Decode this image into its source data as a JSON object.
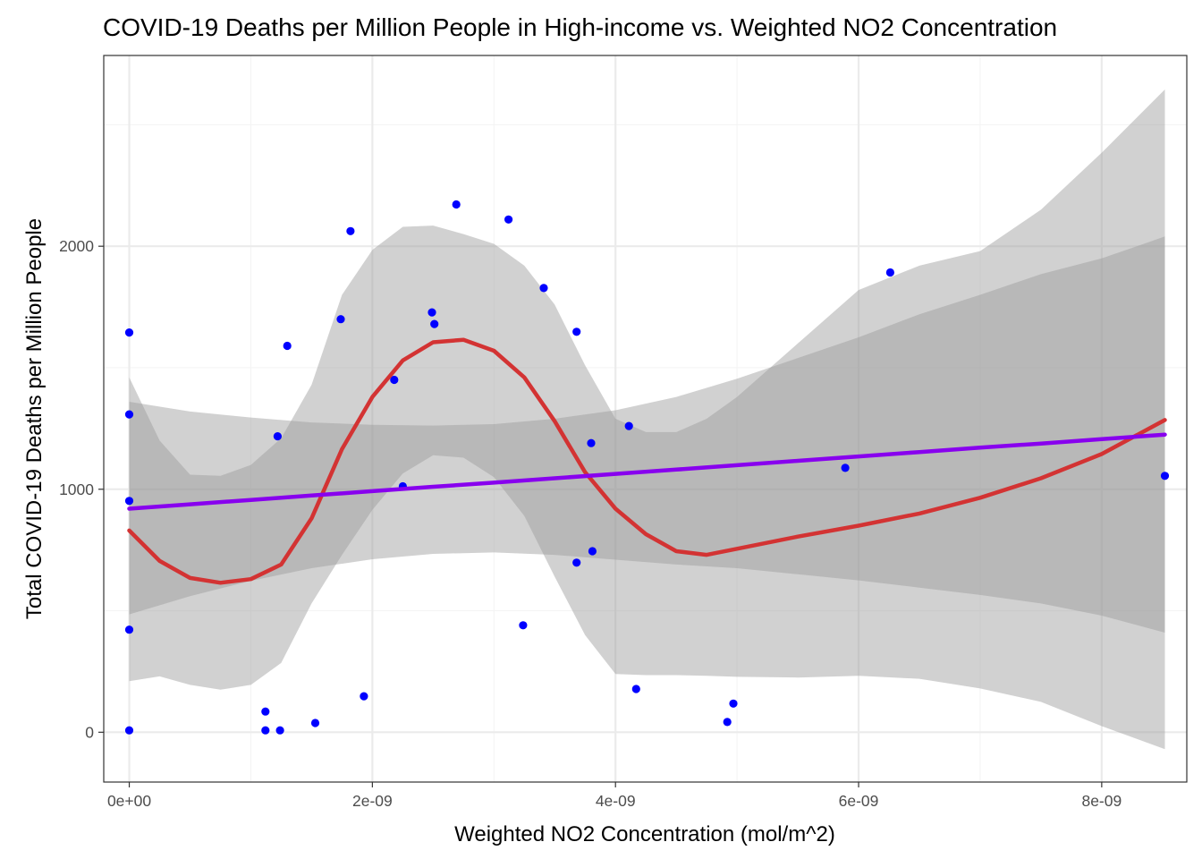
{
  "chart_data": {
    "type": "scatter",
    "title": "COVID-19 Deaths per Million People in High-income vs. Weighted NO2 Concentration",
    "xlabel": "Weighted NO2 Concentration (mol/m^2)",
    "ylabel": "Total COVID-19 Deaths per Million People",
    "xlim": [
      -2.1e-10,
      8.7e-09
    ],
    "ylim": [
      -205,
      2785
    ],
    "x_ticks": [
      0,
      2e-09,
      4e-09,
      6e-09,
      8e-09
    ],
    "x_tick_labels": [
      "0e+00",
      "2e-09",
      "4e-09",
      "6e-09",
      "8e-09"
    ],
    "y_ticks": [
      0,
      1000,
      2000
    ],
    "y_tick_labels": [
      "0",
      "1000",
      "2000"
    ],
    "grid": true,
    "legend": "none",
    "colors": {
      "points": "#0000ff",
      "loess_line": "#d33333",
      "lm_line": "#8800ee",
      "ribbon": "#999999",
      "panel_border": "#333333",
      "grid_major": "#ebebeb",
      "grid_minor": "#f4f4f4"
    },
    "points": [
      {
        "x": 0.0,
        "y": 1645
      },
      {
        "x": 0.0,
        "y": 1308
      },
      {
        "x": 0.0,
        "y": 952
      },
      {
        "x": 0.0,
        "y": 422
      },
      {
        "x": 0.0,
        "y": 8
      },
      {
        "x": 1.12e-09,
        "y": 85
      },
      {
        "x": 1.12e-09,
        "y": 8
      },
      {
        "x": 1.22e-09,
        "y": 1218
      },
      {
        "x": 1.24e-09,
        "y": 8
      },
      {
        "x": 1.3e-09,
        "y": 1590
      },
      {
        "x": 1.53e-09,
        "y": 38
      },
      {
        "x": 1.74e-09,
        "y": 1700
      },
      {
        "x": 1.82e-09,
        "y": 2062
      },
      {
        "x": 1.93e-09,
        "y": 148
      },
      {
        "x": 2.18e-09,
        "y": 1450
      },
      {
        "x": 2.25e-09,
        "y": 1012
      },
      {
        "x": 2.49e-09,
        "y": 1728
      },
      {
        "x": 2.51e-09,
        "y": 1680
      },
      {
        "x": 2.69e-09,
        "y": 2172
      },
      {
        "x": 3.12e-09,
        "y": 2110
      },
      {
        "x": 3.24e-09,
        "y": 440
      },
      {
        "x": 3.41e-09,
        "y": 1828
      },
      {
        "x": 3.68e-09,
        "y": 1648
      },
      {
        "x": 3.68e-09,
        "y": 698
      },
      {
        "x": 3.8e-09,
        "y": 1190
      },
      {
        "x": 3.81e-09,
        "y": 745
      },
      {
        "x": 4.11e-09,
        "y": 1260
      },
      {
        "x": 4.17e-09,
        "y": 178
      },
      {
        "x": 4.92e-09,
        "y": 42
      },
      {
        "x": 4.97e-09,
        "y": 118
      },
      {
        "x": 5.89e-09,
        "y": 1088
      },
      {
        "x": 6.26e-09,
        "y": 1892
      },
      {
        "x": 8.52e-09,
        "y": 1055
      }
    ],
    "loess": {
      "x": [
        0,
        2.5e-10,
        5e-10,
        7.5e-10,
        1e-09,
        1.25e-09,
        1.5e-09,
        1.75e-09,
        2e-09,
        2.25e-09,
        2.5e-09,
        2.75e-09,
        3e-09,
        3.25e-09,
        3.5e-09,
        3.75e-09,
        4e-09,
        4.25e-09,
        4.5e-09,
        4.75e-09,
        5e-09,
        5.5e-09,
        6e-09,
        6.5e-09,
        7e-09,
        7.5e-09,
        8e-09,
        8.52e-09
      ],
      "y": [
        830,
        705,
        635,
        615,
        630,
        690,
        880,
        1165,
        1380,
        1530,
        1605,
        1615,
        1570,
        1460,
        1280,
        1070,
        920,
        815,
        745,
        730,
        755,
        805,
        850,
        900,
        965,
        1045,
        1145,
        1285
      ],
      "lower": [
        210,
        230,
        195,
        175,
        195,
        285,
        530,
        730,
        915,
        1065,
        1140,
        1130,
        1050,
        890,
        640,
        400,
        240,
        235,
        235,
        232,
        228,
        225,
        232,
        220,
        180,
        125,
        25,
        -70
      ],
      "upper": [
        1460,
        1200,
        1060,
        1055,
        1100,
        1210,
        1430,
        1800,
        1985,
        2080,
        2085,
        2050,
        2010,
        1920,
        1760,
        1510,
        1290,
        1235,
        1235,
        1290,
        1380,
        1600,
        1820,
        1920,
        1980,
        2150,
        2385,
        2645
      ]
    },
    "lm": {
      "x": [
        0,
        5e-10,
        1e-09,
        1.5e-09,
        2e-09,
        2.5e-09,
        3e-09,
        3.5e-09,
        4e-09,
        4.5e-09,
        5e-09,
        5.5e-09,
        6e-09,
        6.5e-09,
        7e-09,
        7.5e-09,
        8e-09,
        8.52e-09
      ],
      "y": [
        920,
        938,
        956,
        974,
        992,
        1010,
        1027,
        1045,
        1063,
        1081,
        1099,
        1117,
        1135,
        1153,
        1171,
        1188,
        1206,
        1225
      ],
      "lower": [
        485,
        560,
        623,
        675,
        712,
        734,
        740,
        730,
        710,
        690,
        675,
        650,
        625,
        595,
        565,
        530,
        480,
        410
      ],
      "upper": [
        1360,
        1320,
        1295,
        1275,
        1265,
        1262,
        1268,
        1290,
        1325,
        1380,
        1455,
        1540,
        1625,
        1720,
        1800,
        1885,
        1950,
        2040
      ]
    }
  }
}
